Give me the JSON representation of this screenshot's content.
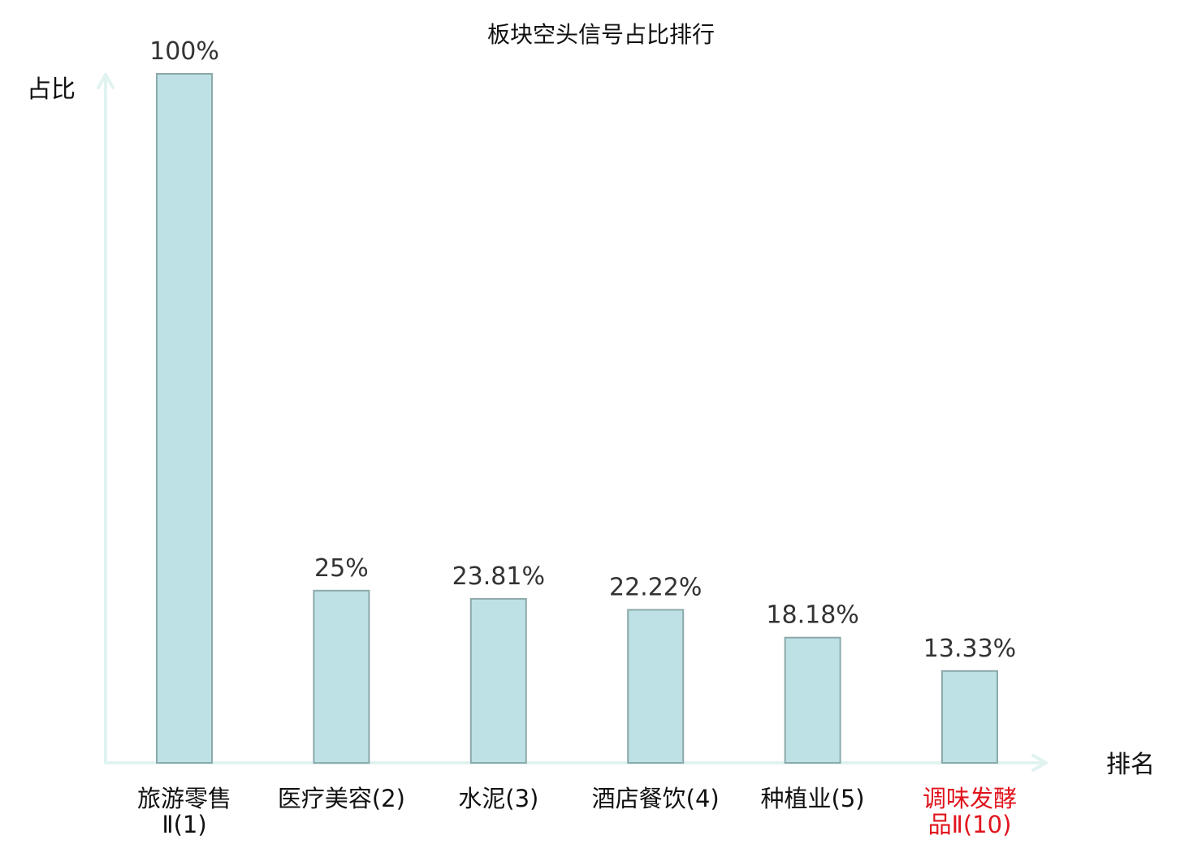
{
  "chart_data": {
    "type": "bar",
    "title": "板块空头信号占比排行",
    "ylabel": "占比",
    "xlabel": "排名",
    "ylim": [
      0,
      100
    ],
    "grid": false,
    "legend": "none",
    "categories": [
      {
        "name": "旅游零售Ⅱ",
        "rank": "(1)",
        "label_lines": [
          "旅游零售",
          "Ⅱ(1)"
        ],
        "highlight": false
      },
      {
        "name": "医疗美容",
        "rank": "(2)",
        "label_lines": [
          "医疗美容(2)"
        ],
        "highlight": false
      },
      {
        "name": "水泥",
        "rank": "(3)",
        "label_lines": [
          "水泥(3)"
        ],
        "highlight": false
      },
      {
        "name": "酒店餐饮",
        "rank": "(4)",
        "label_lines": [
          "酒店餐饮(4)"
        ],
        "highlight": false
      },
      {
        "name": "种植业",
        "rank": "(5)",
        "label_lines": [
          "种植业(5)"
        ],
        "highlight": false
      },
      {
        "name": "调味发酵品Ⅱ",
        "rank": "(10)",
        "label_lines": [
          "调味发酵",
          "品Ⅱ(10)"
        ],
        "highlight": true
      }
    ],
    "values": [
      100,
      25,
      23.81,
      22.22,
      18.18,
      13.33
    ],
    "value_labels": [
      "100%",
      "25%",
      "23.81%",
      "22.22%",
      "18.18%",
      "13.33%"
    ],
    "colors": {
      "bar_fill": "#bde1e4",
      "bar_stroke": "#8ca9ab",
      "axis": "#e0f3f1",
      "label_normal": "#111111",
      "label_highlight": "#e0141e",
      "value_text": "#333333"
    }
  }
}
